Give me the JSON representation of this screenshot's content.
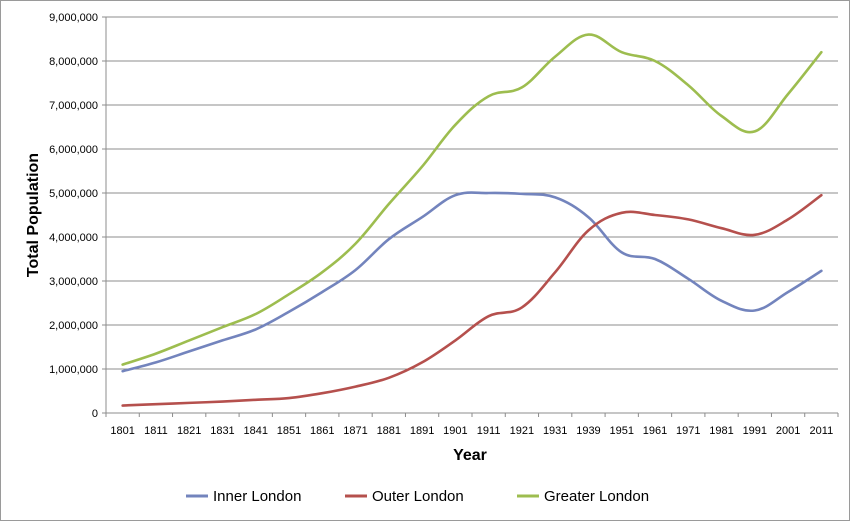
{
  "chart_data": {
    "type": "line",
    "title": "",
    "xlabel": "Year",
    "ylabel": "Total Population",
    "ylim": [
      0,
      9000000
    ],
    "yticks": [
      "0",
      "1,000,000",
      "2,000,000",
      "3,000,000",
      "4,000,000",
      "5,000,000",
      "6,000,000",
      "7,000,000",
      "8,000,000",
      "9,000,000"
    ],
    "ytick_values": [
      0,
      1000000,
      2000000,
      3000000,
      4000000,
      5000000,
      6000000,
      7000000,
      8000000,
      9000000
    ],
    "grid": true,
    "legend_position": "bottom",
    "categories": [
      "1801",
      "1811",
      "1821",
      "1831",
      "1841",
      "1851",
      "1861",
      "1871",
      "1881",
      "1891",
      "1901",
      "1911",
      "1921",
      "1931",
      "1939",
      "1951",
      "1961",
      "1971",
      "1981",
      "1991",
      "2001",
      "2011"
    ],
    "series": [
      {
        "name": "Inner London",
        "color": "#7384bd",
        "values": [
          950000,
          1150000,
          1400000,
          1650000,
          1900000,
          2300000,
          2750000,
          3250000,
          3950000,
          4450000,
          4950000,
          5000000,
          4980000,
          4900000,
          4450000,
          3650000,
          3500000,
          3050000,
          2550000,
          2330000,
          2750000,
          3230000
        ]
      },
      {
        "name": "Outer London",
        "color": "#b5504d",
        "values": [
          170000,
          200000,
          230000,
          260000,
          300000,
          340000,
          450000,
          600000,
          800000,
          1150000,
          1650000,
          2200000,
          2400000,
          3200000,
          4150000,
          4550000,
          4500000,
          4400000,
          4200000,
          4050000,
          4400000,
          4950000
        ]
      },
      {
        "name": "Greater London",
        "color": "#9dbd4f",
        "values": [
          1100000,
          1350000,
          1650000,
          1950000,
          2250000,
          2700000,
          3200000,
          3850000,
          4750000,
          5600000,
          6550000,
          7200000,
          7400000,
          8100000,
          8600000,
          8200000,
          8000000,
          7450000,
          6750000,
          6400000,
          7250000,
          8200000
        ]
      }
    ]
  }
}
